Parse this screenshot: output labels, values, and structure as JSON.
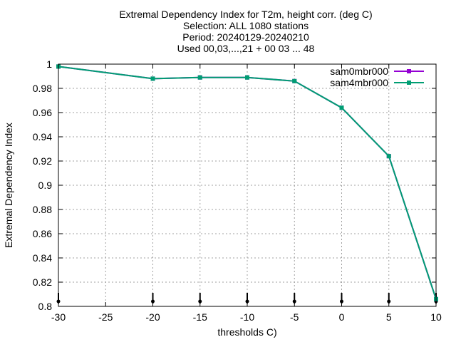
{
  "chart_data": {
    "type": "line",
    "title_lines": [
      "Extremal Dependency Index  for T2m, height corr. (deg C)",
      "Selection: ALL   1080 stations",
      "Period: 20240129-20240210",
      "Used 00,03,...,21 + 00 03 ... 48"
    ],
    "xlabel": "thresholds C)",
    "ylabel": "Extremal Dependency Index",
    "xlim": [
      -30,
      10
    ],
    "ylim": [
      0.8,
      1.0
    ],
    "xticks": [
      -30,
      -25,
      -20,
      -15,
      -10,
      -5,
      0,
      5,
      10
    ],
    "yticks": [
      0.8,
      0.82,
      0.84,
      0.86,
      0.88,
      0.9,
      0.92,
      0.94,
      0.96,
      0.98,
      1.0
    ],
    "ytick_labels": [
      "0.8",
      "0.82",
      "0.84",
      "0.86",
      "0.88",
      "0.9",
      "0.92",
      "0.94",
      "0.96",
      "0.98",
      "1"
    ],
    "grid": true,
    "legend_position": "top-right",
    "x": [
      -30,
      -20,
      -15,
      -10,
      -5,
      0,
      5,
      10
    ],
    "series": [
      {
        "name": "sam0mbr000",
        "color": "#9400d3",
        "values": [
          0.998,
          0.988,
          0.989,
          0.989,
          0.986,
          0.964,
          0.924,
          0.806
        ]
      },
      {
        "name": "sam4mbr000",
        "color": "#009e73",
        "values": [
          0.998,
          0.988,
          0.989,
          0.989,
          0.986,
          0.964,
          0.924,
          0.806
        ]
      }
    ],
    "error_bar_x": [
      -30,
      -20,
      -15,
      -10,
      -5,
      0,
      5,
      10
    ]
  }
}
